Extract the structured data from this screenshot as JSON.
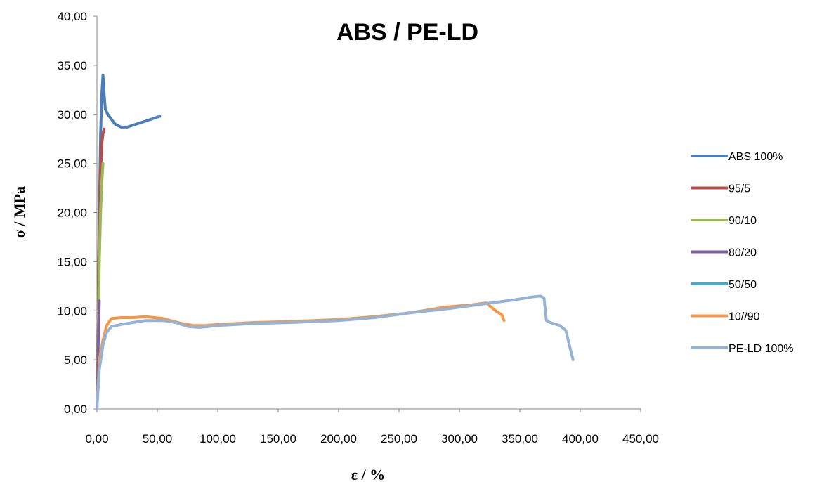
{
  "chart_data": {
    "type": "line",
    "title": "ABS / PE-LD",
    "xlabel": "ε / %",
    "ylabel": "σ / MPa",
    "xlim": [
      0,
      450
    ],
    "ylim": [
      0,
      40
    ],
    "x_ticks": [
      "0,00",
      "50,00",
      "100,00",
      "150,00",
      "200,00",
      "250,00",
      "300,00",
      "350,00",
      "400,00",
      "450,00"
    ],
    "y_ticks": [
      "0,00",
      "5,00",
      "10,00",
      "15,00",
      "20,00",
      "25,00",
      "30,00",
      "35,00",
      "40,00"
    ],
    "grid": false,
    "legend_position": "right",
    "series": [
      {
        "name": "ABS 100%",
        "color": "#4a7ebb",
        "points": [
          [
            0,
            0
          ],
          [
            1,
            10
          ],
          [
            2,
            20
          ],
          [
            3,
            28
          ],
          [
            4,
            32
          ],
          [
            5,
            34
          ],
          [
            6,
            32
          ],
          [
            7,
            30.5
          ],
          [
            9,
            30
          ],
          [
            12,
            29.5
          ],
          [
            15,
            29
          ],
          [
            20,
            28.7
          ],
          [
            25,
            28.7
          ],
          [
            30,
            28.9
          ],
          [
            40,
            29.3
          ],
          [
            52,
            29.8
          ]
        ]
      },
      {
        "name": "95/5",
        "color": "#be4b48",
        "points": [
          [
            0,
            0
          ],
          [
            1,
            10
          ],
          [
            2,
            18
          ],
          [
            3,
            24
          ],
          [
            4,
            27
          ],
          [
            5,
            28
          ],
          [
            6,
            28.5
          ]
        ]
      },
      {
        "name": "90/10",
        "color": "#98b954",
        "points": [
          [
            0,
            0
          ],
          [
            1,
            8
          ],
          [
            2,
            15
          ],
          [
            3,
            20
          ],
          [
            4,
            23
          ],
          [
            5,
            25
          ]
        ]
      },
      {
        "name": "80/20",
        "color": "#7d60a0",
        "points": [
          [
            0,
            0
          ],
          [
            0.5,
            3
          ],
          [
            1,
            6
          ],
          [
            1.5,
            9
          ],
          [
            2,
            11
          ]
        ]
      },
      {
        "name": "50/50",
        "color": "#46aac5",
        "points": [
          [
            0,
            0
          ],
          [
            0.5,
            1.5
          ],
          [
            1,
            3
          ]
        ]
      },
      {
        "name": "10//90",
        "color": "#f79646",
        "points": [
          [
            0,
            0
          ],
          [
            2,
            5
          ],
          [
            5,
            7
          ],
          [
            8,
            8.5
          ],
          [
            12,
            9.2
          ],
          [
            20,
            9.3
          ],
          [
            30,
            9.3
          ],
          [
            40,
            9.4
          ],
          [
            55,
            9.2
          ],
          [
            70,
            8.7
          ],
          [
            80,
            8.5
          ],
          [
            90,
            8.5
          ],
          [
            100,
            8.6
          ],
          [
            130,
            8.8
          ],
          [
            160,
            8.9
          ],
          [
            200,
            9.1
          ],
          [
            230,
            9.4
          ],
          [
            260,
            9.8
          ],
          [
            290,
            10.4
          ],
          [
            310,
            10.6
          ],
          [
            322,
            10.8
          ],
          [
            326,
            10.4
          ],
          [
            330,
            10
          ],
          [
            335,
            9.6
          ],
          [
            337,
            9
          ]
        ]
      },
      {
        "name": "PE-LD 100%",
        "color": "#94b3d7",
        "points": [
          [
            0,
            0
          ],
          [
            2,
            4
          ],
          [
            5,
            6.5
          ],
          [
            8,
            7.8
          ],
          [
            12,
            8.4
          ],
          [
            20,
            8.6
          ],
          [
            30,
            8.8
          ],
          [
            40,
            9
          ],
          [
            55,
            9
          ],
          [
            65,
            8.8
          ],
          [
            75,
            8.4
          ],
          [
            85,
            8.3
          ],
          [
            100,
            8.5
          ],
          [
            130,
            8.7
          ],
          [
            160,
            8.8
          ],
          [
            200,
            9
          ],
          [
            230,
            9.3
          ],
          [
            260,
            9.8
          ],
          [
            290,
            10.2
          ],
          [
            320,
            10.7
          ],
          [
            345,
            11.1
          ],
          [
            360,
            11.4
          ],
          [
            367,
            11.5
          ],
          [
            370,
            11.3
          ],
          [
            372,
            9
          ],
          [
            375,
            8.8
          ],
          [
            383,
            8.5
          ],
          [
            388,
            8
          ],
          [
            392,
            6
          ],
          [
            394,
            5
          ]
        ]
      }
    ]
  }
}
